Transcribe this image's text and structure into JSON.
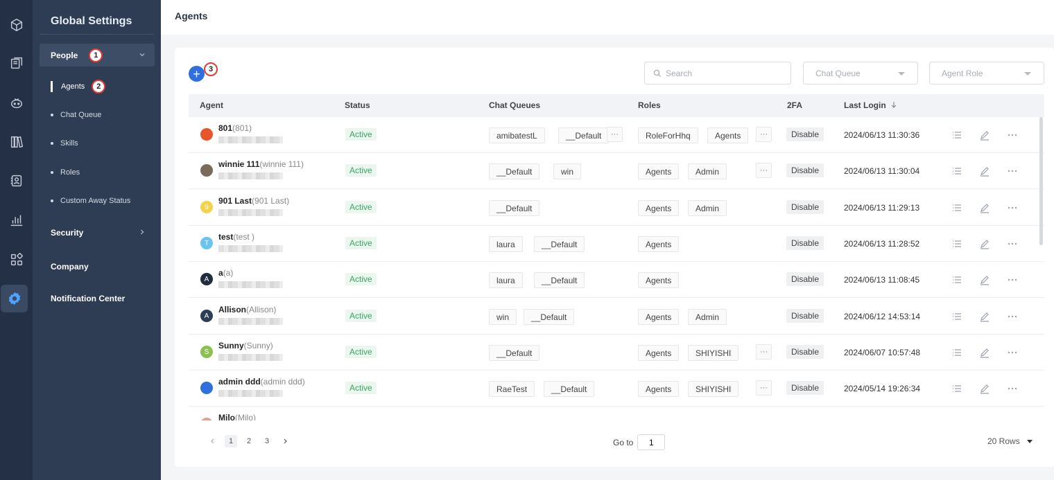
{
  "sidebar": {
    "title": "Global Settings",
    "groups": {
      "people": "People",
      "security": "Security",
      "company": "Company",
      "notification": "Notification Center"
    },
    "people_items": [
      "Agents",
      "Chat Queue",
      "Skills",
      "Roles",
      "Custom Away Status"
    ],
    "badges": [
      "1",
      "2",
      "3"
    ]
  },
  "header": {
    "title": "Agents"
  },
  "toolbar": {
    "add_label": "+",
    "search_placeholder": "Search",
    "chat_queue_placeholder": "Chat Queue",
    "agent_role_placeholder": "Agent Role"
  },
  "table": {
    "columns": [
      "Agent",
      "Status",
      "Chat Queues",
      "Roles",
      "2FA",
      "Last Login"
    ],
    "sort_icon": "arrow-down-icon",
    "rows": [
      {
        "name": "801",
        "alias": "(801)",
        "avatar": "",
        "avatar_color": "#e8552c",
        "status": "Active",
        "queues": [
          "amibatestL",
          "__Default"
        ],
        "queues_more": "···",
        "roles": [
          "RoleForHhq",
          "Agents"
        ],
        "roles_more": "···",
        "tfa": "Disable",
        "last_login": "2024/06/13 11:30:36"
      },
      {
        "name": "winnie 111",
        "alias": "(winnie 111)",
        "avatar": "",
        "avatar_color": "#7a6a5a",
        "status": "Active",
        "queues": [
          "__Default",
          "win"
        ],
        "queues_more": "",
        "roles": [
          "Agents",
          "Admin"
        ],
        "roles_more": "···",
        "tfa": "Disable",
        "last_login": "2024/06/13 11:30:04"
      },
      {
        "name": "901 Last",
        "alias": "(901 Last)",
        "avatar": "9",
        "avatar_color": "#f4d24c",
        "status": "Active",
        "queues": [
          "__Default"
        ],
        "queues_more": "",
        "roles": [
          "Agents",
          "Admin"
        ],
        "roles_more": "",
        "tfa": "Disable",
        "last_login": "2024/06/13 11:29:13"
      },
      {
        "name": "test",
        "alias": "(test )",
        "avatar": "T",
        "avatar_color": "#6ac4f0",
        "status": "Active",
        "queues": [
          "laura",
          "__Default"
        ],
        "queues_more": "",
        "roles": [
          "Agents"
        ],
        "roles_more": "",
        "tfa": "Disable",
        "last_login": "2024/06/13 11:28:52"
      },
      {
        "name": "a",
        "alias": "(a)",
        "avatar": "A",
        "avatar_color": "#1f2d3d",
        "status": "Active",
        "queues": [
          "laura",
          "__Default"
        ],
        "queues_more": "",
        "roles": [
          "Agents"
        ],
        "roles_more": "",
        "tfa": "Disable",
        "last_login": "2024/06/13 11:08:45"
      },
      {
        "name": "Allison",
        "alias": "(Allison)",
        "avatar": "A",
        "avatar_color": "#2c3e55",
        "status": "Active",
        "queues": [
          "win",
          "__Default"
        ],
        "queues_more": "",
        "roles": [
          "Agents",
          "Admin"
        ],
        "roles_more": "",
        "tfa": "Disable",
        "last_login": "2024/06/12 14:53:14"
      },
      {
        "name": "Sunny",
        "alias": "(Sunny)",
        "avatar": "S",
        "avatar_color": "#8cc152",
        "status": "Active",
        "queues": [
          "__Default"
        ],
        "queues_more": "",
        "roles": [
          "Agents",
          "SHIYISHI"
        ],
        "roles_more": "···",
        "tfa": "Disable",
        "last_login": "2024/06/07 10:57:48"
      },
      {
        "name": "admin ddd",
        "alias": "(admin ddd)",
        "avatar": "",
        "avatar_color": "#2f6fde",
        "status": "Active",
        "queues": [
          "RaeTest",
          "__Default"
        ],
        "queues_more": "",
        "roles": [
          "Agents",
          "SHIYISHI"
        ],
        "roles_more": "···",
        "tfa": "Disable",
        "last_login": "2024/05/14 19:26:34"
      },
      {
        "name": "Milo",
        "alias": "(Milo)",
        "avatar": "",
        "avatar_color": "#e9a08a",
        "status": "",
        "queues": [],
        "queues_more": "",
        "roles": [],
        "roles_more": "",
        "tfa": "",
        "last_login": ""
      }
    ]
  },
  "pagination": {
    "pages": [
      "1",
      "2",
      "3"
    ],
    "current": "1",
    "goto_label": "Go to",
    "goto_value": "1",
    "rows_label": "20 Rows"
  },
  "colors": {
    "rail": "#233045",
    "sidebar": "#2f3d54",
    "accent": "#2f6fde",
    "active_status": "#3aa665",
    "badge_border": "#e53935"
  },
  "icons": {
    "rail": [
      "cube-icon",
      "chat-bubbles-icon",
      "robot-icon",
      "book-icon",
      "contact-card-icon",
      "bar-chart-icon",
      "apps-grid-icon",
      "gear-icon"
    ],
    "row_actions": [
      "list-icon",
      "edit-icon",
      "more-icon"
    ]
  }
}
